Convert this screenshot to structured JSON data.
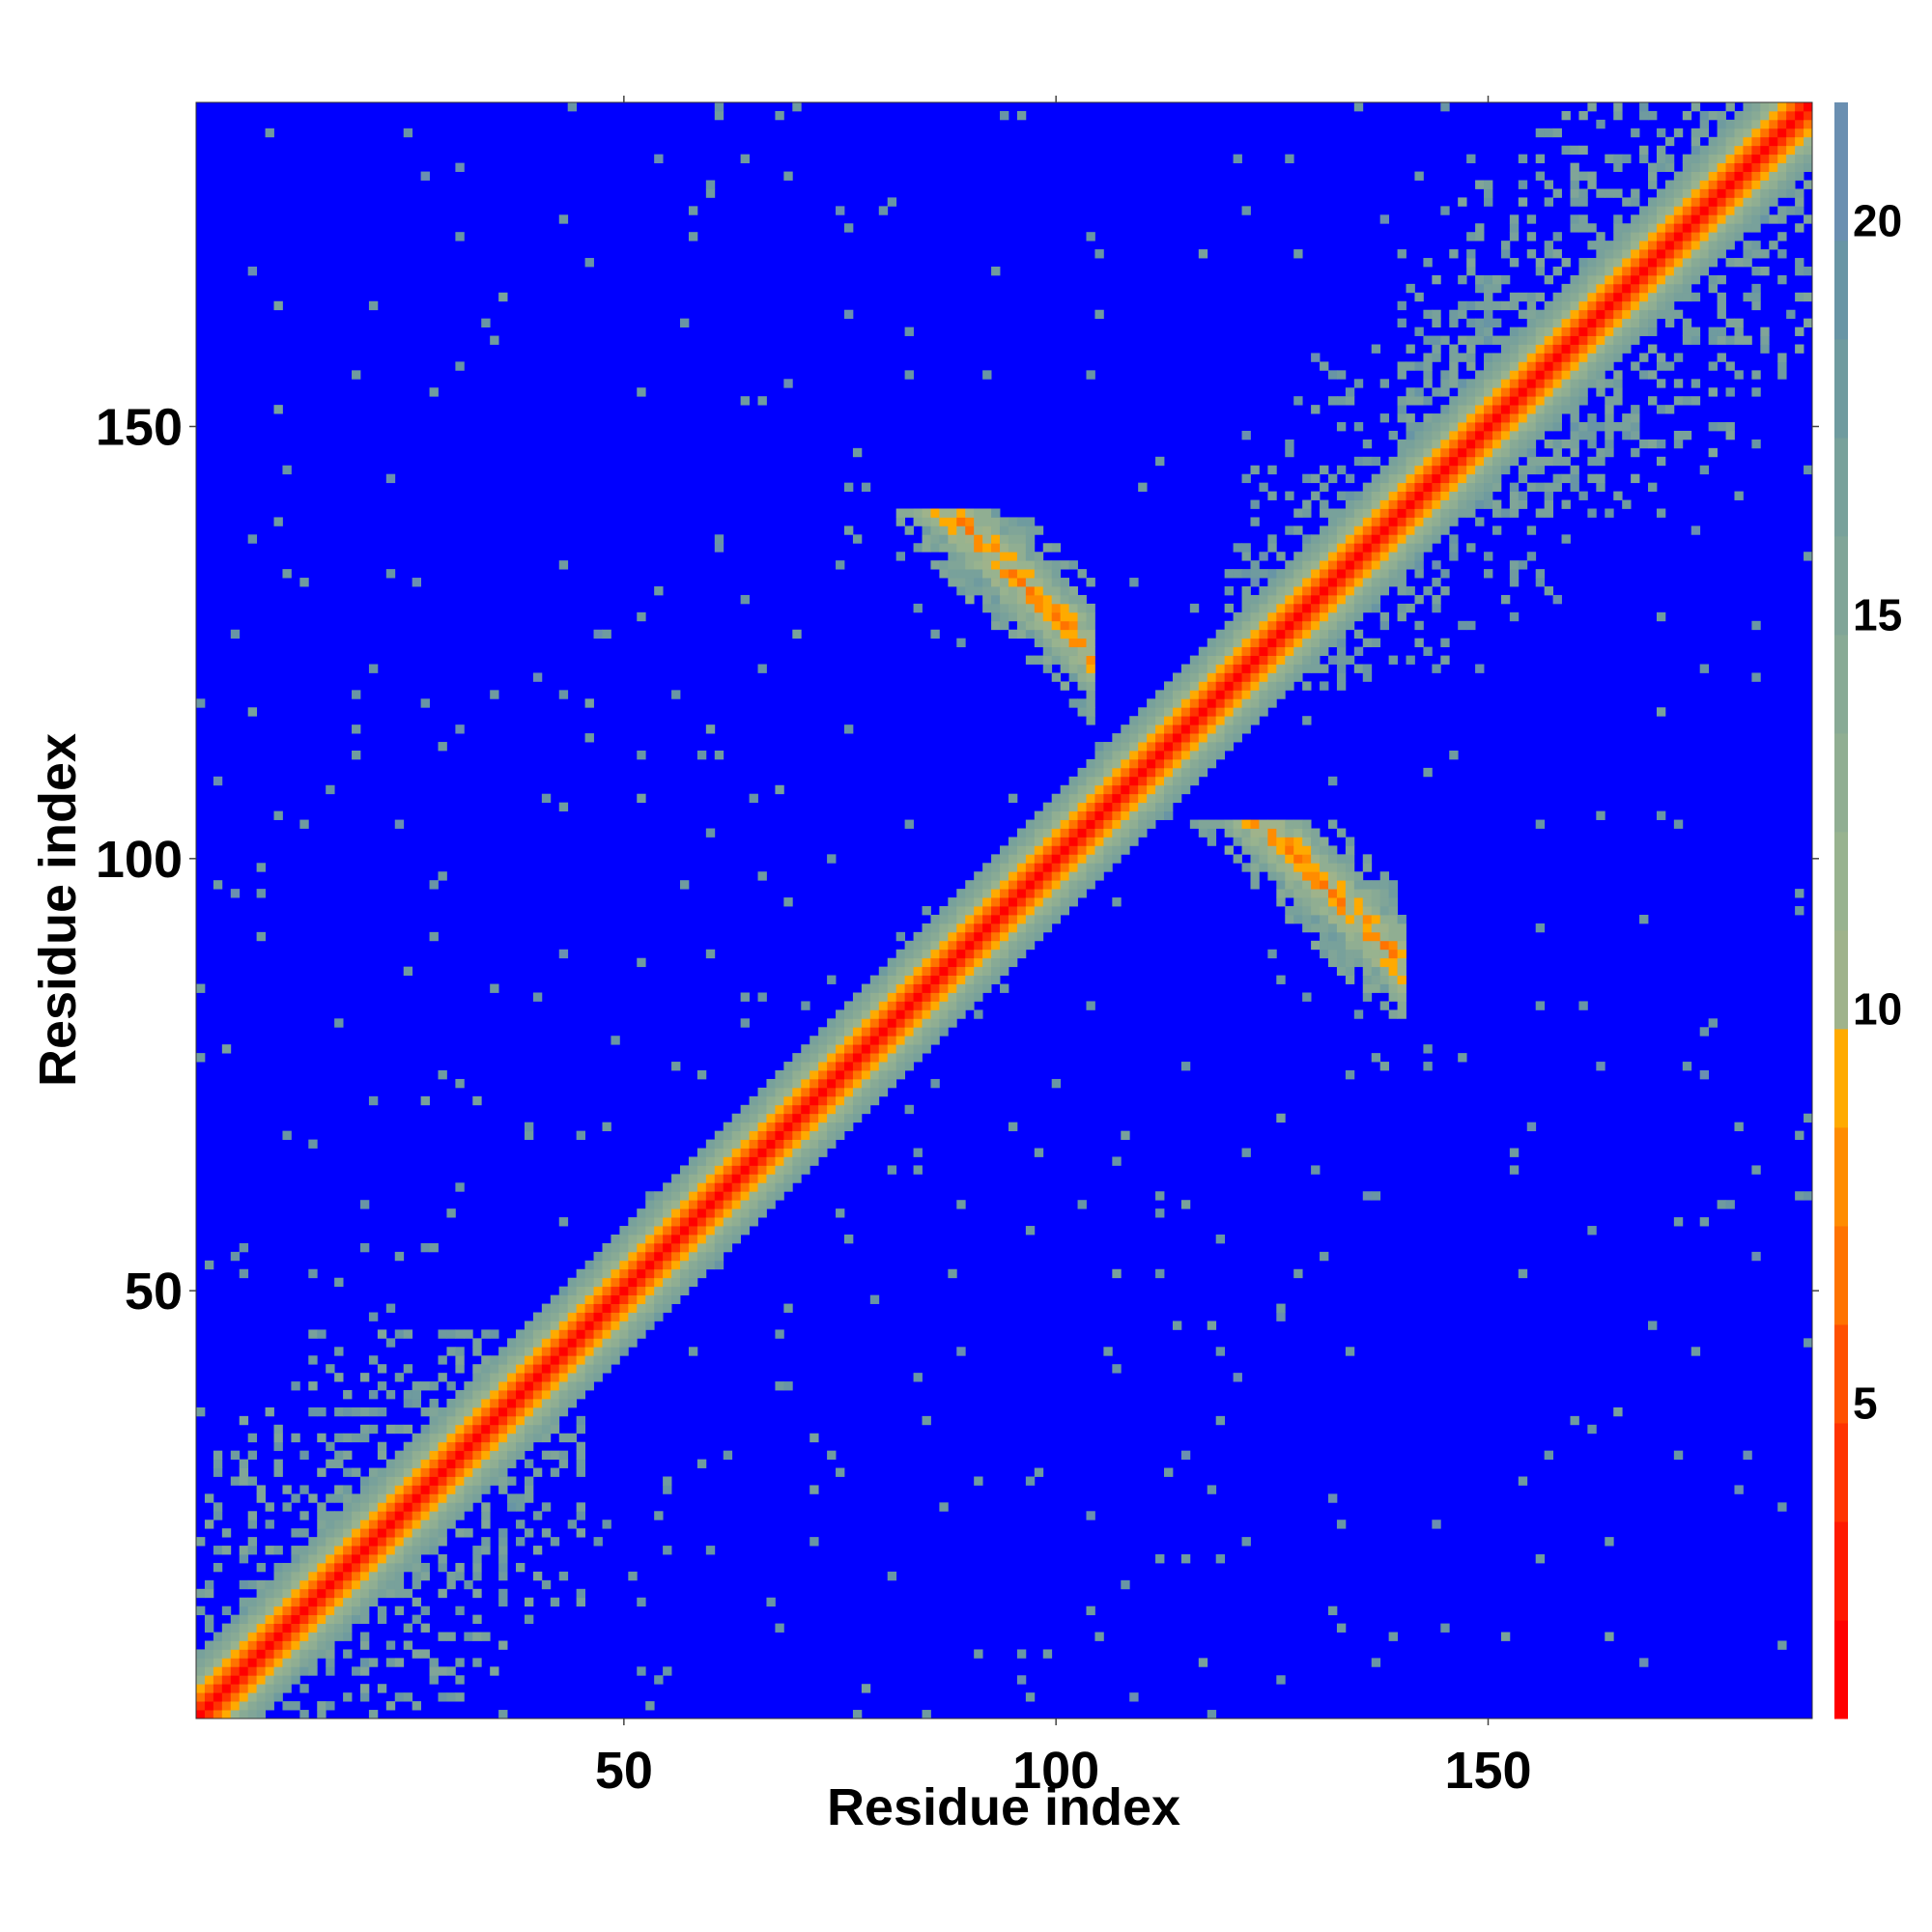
{
  "chart_data": {
    "type": "heatmap",
    "title": "",
    "xlabel": "Residue index",
    "ylabel": "Residue index",
    "n_residues": 187,
    "xlim": [
      1,
      187
    ],
    "ylim": [
      1,
      187
    ],
    "x_ticks": [
      50,
      100,
      150
    ],
    "y_ticks": [
      50,
      100,
      150
    ],
    "colorbar": {
      "min": 1,
      "max": 21.5,
      "ticks": [
        5,
        10,
        15,
        20
      ],
      "boundaries": [
        1,
        2.25,
        3.5,
        4.75,
        6,
        7.25,
        8.5,
        9.75,
        11,
        12.25,
        13.5,
        14.75,
        16,
        17.25,
        18.5,
        19.75,
        21.5
      ],
      "colors": [
        "#ff0000",
        "#ff1a00",
        "#ff3300",
        "#ff5000",
        "#ff7300",
        "#ff8c00",
        "#ffaa00",
        "#9fb38b",
        "#98b38f",
        "#90ae92",
        "#88aa95",
        "#80a598",
        "#78a19b",
        "#6f9b9f",
        "#6895a5",
        "#6a8fb1",
        "#0000ff"
      ]
    },
    "background_value": 21.5,
    "diagonal_band": {
      "description": "distance increases with |i-j| along the main diagonal",
      "profile": [
        [
          0,
          1.5
        ],
        [
          1,
          3.8
        ],
        [
          2,
          6.5
        ],
        [
          3,
          8.8
        ],
        [
          4,
          11.5
        ],
        [
          5,
          13.5
        ],
        [
          6,
          15.5
        ],
        [
          7,
          17
        ],
        [
          8,
          18.5
        ]
      ]
    },
    "contact_regions": [
      {
        "name": "antiparallel-sheet",
        "center_i": 110,
        "center_j": 118,
        "orientation": "anti",
        "length": 34,
        "width": 5,
        "min_value": 6
      },
      {
        "name": "n-terminal-cluster-a",
        "i_range": [
          1,
          45
        ],
        "j_range": [
          1,
          45
        ],
        "value": 15,
        "density": 0.45
      },
      {
        "name": "c-terminal-cluster",
        "i_range": [
          140,
          187
        ],
        "j_range": [
          140,
          187
        ],
        "value": 15,
        "density": 0.5
      },
      {
        "name": "cross-cluster",
        "i_range": [
          120,
          165
        ],
        "j_range": [
          120,
          165
        ],
        "value": 16,
        "density": 0.35
      }
    ]
  }
}
